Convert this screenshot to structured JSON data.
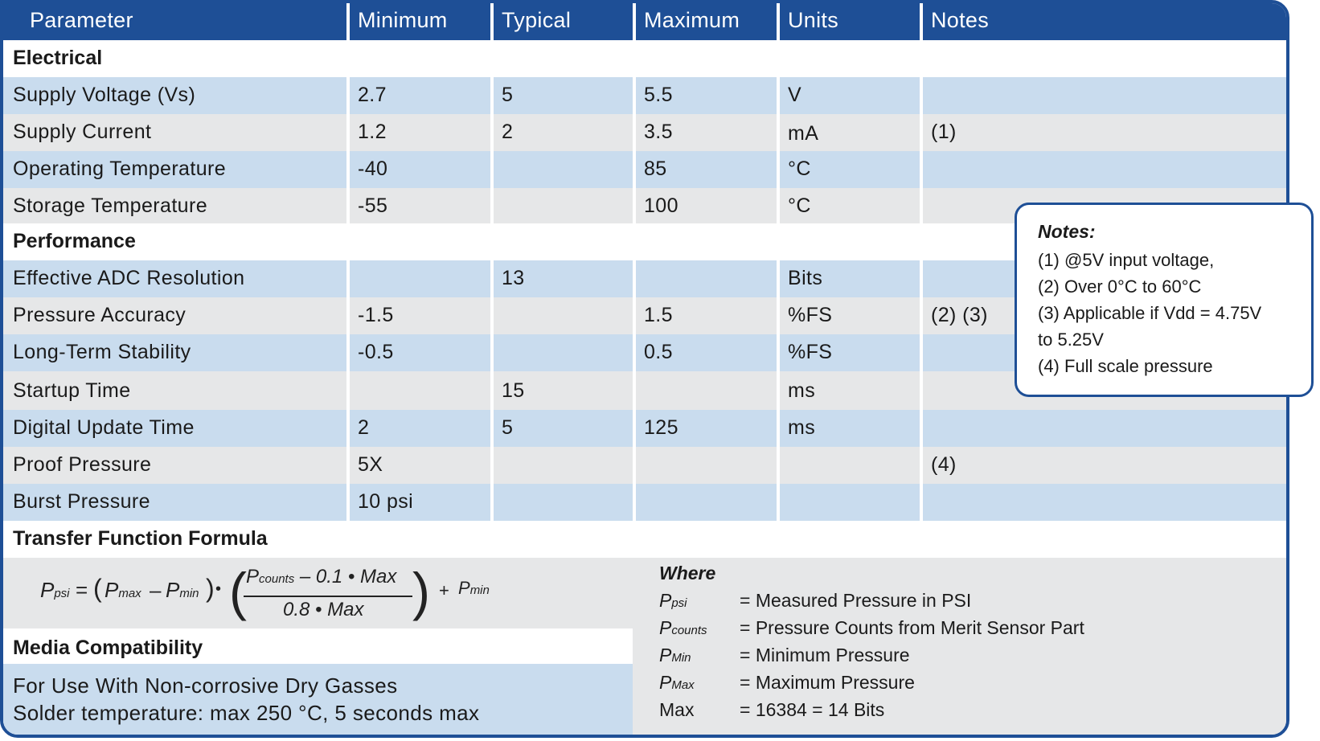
{
  "header": [
    "Parameter",
    "Minimum",
    "Typical",
    "Maximum",
    "Units",
    "Notes"
  ],
  "sections": {
    "electrical": "Electrical",
    "performance": "Performance",
    "transfer": "Transfer Function Formula",
    "media": "Media Compatibility"
  },
  "rows": [
    {
      "param": "Supply Voltage (Vs)",
      "min": "2.7",
      "typ": "5",
      "max": "5.5",
      "units": "V",
      "notes": ""
    },
    {
      "param": "Supply Current",
      "min": "1.2",
      "typ": "2",
      "max": "3.5",
      "units": "mA",
      "notes": "(1)"
    },
    {
      "param": "Operating Temperature",
      "min": "-40",
      "typ": "",
      "max": "85",
      "units": "°C",
      "notes": ""
    },
    {
      "param": "Storage Temperature",
      "min": "-55",
      "typ": "",
      "max": "100",
      "units": "°C",
      "notes": ""
    },
    {
      "param": "Effective ADC Resolution",
      "min": "",
      "typ": "13",
      "max": "",
      "units": "Bits",
      "notes": ""
    },
    {
      "param": "Pressure Accuracy",
      "min": "-1.5",
      "typ": "",
      "max": "1.5",
      "units": "%FS",
      "notes": "(2) (3)"
    },
    {
      "param": "Long-Term Stability",
      "min": "-0.5",
      "typ": "",
      "max": "0.5",
      "units": "%FS",
      "notes": ""
    },
    {
      "param": "Startup Time",
      "min": "",
      "typ": "15",
      "max": "",
      "units": "ms",
      "notes": ""
    },
    {
      "param": "Digital Update Time",
      "min": "2",
      "typ": "5",
      "max": "125",
      "units": "ms",
      "notes": ""
    },
    {
      "param": "Proof Pressure",
      "min": "5X",
      "typ": "",
      "max": "",
      "units": "",
      "notes": "(4)"
    },
    {
      "param": "Burst Pressure",
      "min": "10 psi",
      "typ": "",
      "max": "",
      "units": "",
      "notes": ""
    }
  ],
  "notes_box": {
    "title": "Notes:",
    "lines": [
      "(1) @5V input voltage,",
      "(2) Over 0°C to 60°C",
      "(3) Applicable if Vdd = 4.75V",
      "to 5.25V",
      "(4) Full scale pressure"
    ]
  },
  "formula": {
    "lhs": "P",
    "lhs_sub": "psi",
    "eq": "=",
    "open": "(",
    "pmax": "P",
    "pmax_sub": "max",
    "minus": "–",
    "pmin": "P",
    "pmin_sub": "min",
    "close": ")",
    "dot": "•",
    "num_p": "P",
    "num_sub": "counts",
    "num_rest": " – 0.1 • Max",
    "den": "0.8 • Max",
    "plus": "+",
    "pmin2": "P",
    "pmin2_sub": "min"
  },
  "where": {
    "title": "Where",
    "items": [
      {
        "var": "P",
        "sub": "psi",
        "def": "= Measured Pressure in PSI"
      },
      {
        "var": "P",
        "sub": "counts",
        "def": "= Pressure Counts from Merit Sensor Part"
      },
      {
        "var": "P",
        "sub": "Min",
        "def": "= Minimum Pressure"
      },
      {
        "var": "P",
        "sub": "Max",
        "def": "= Maximum Pressure"
      },
      {
        "var": "Max",
        "sub": "",
        "def": "= 16384 = 14 Bits"
      }
    ]
  },
  "media": [
    "For Use With Non-corrosive Dry Gasses",
    "Solder temperature:  max 250 °C, 5 seconds max"
  ],
  "colors": {
    "header": "#1e4f96",
    "row_blue": "#c9dcee",
    "row_grey": "#e6e7e8"
  }
}
